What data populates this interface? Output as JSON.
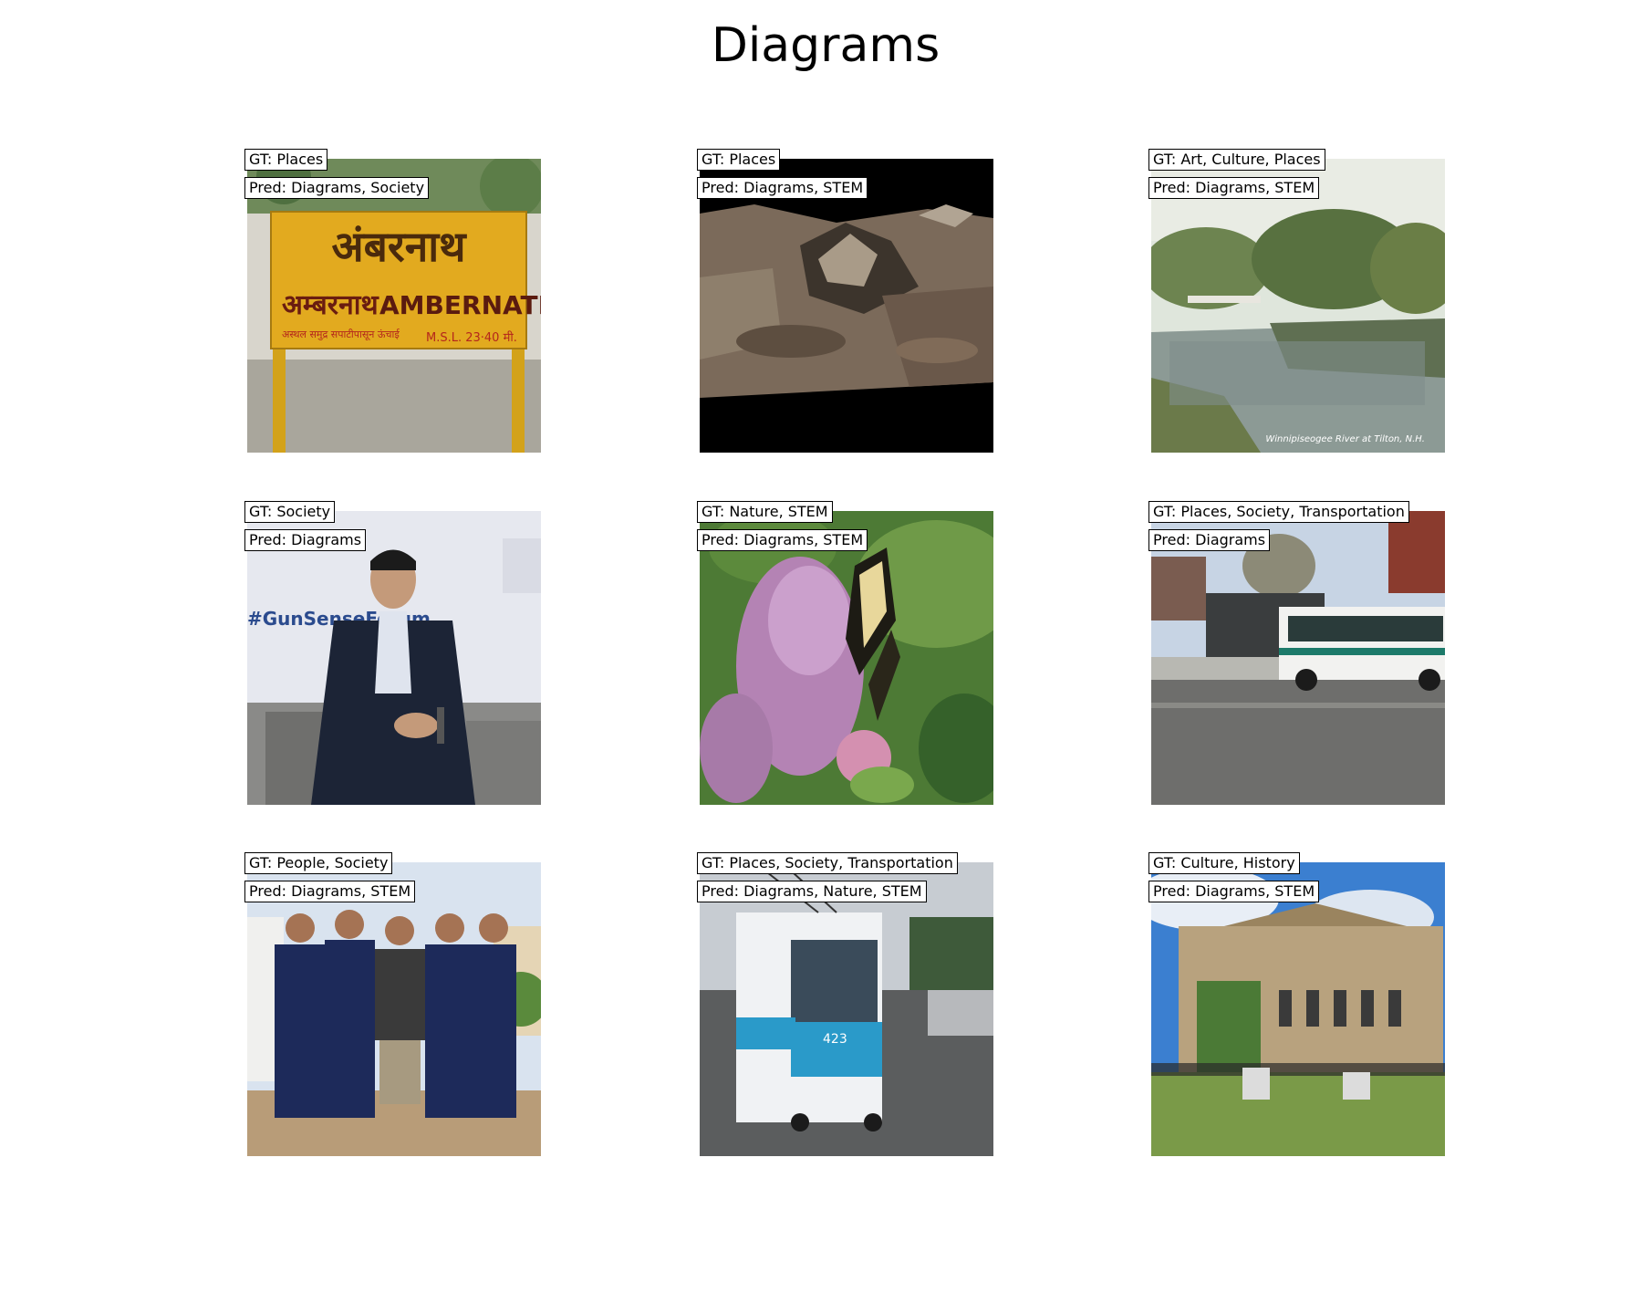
{
  "figure": {
    "title": "Diagrams"
  },
  "panels": [
    {
      "gt": "GT: Places",
      "pred": "Pred: Diagrams, Society",
      "sign_text_top": "अंबरनाथ",
      "sign_text_mid_left": "अम्बरनाथ",
      "sign_text_mid_right": "AMBERNATH",
      "sign_text_bottom_left": "अस्थल समुद्र सपाटीपासून ऊंचाई",
      "sign_text_bottom_right": "M.S.L. 23·40 मी."
    },
    {
      "gt": "GT: Places",
      "pred": "Pred: Diagrams, STEM"
    },
    {
      "gt": "GT: Art, Culture, Places",
      "pred": "Pred: Diagrams, STEM",
      "caption": "Winnipiseogee River at Tilton, N.H."
    },
    {
      "gt": "GT: Society",
      "pred": "Pred: Diagrams",
      "banner_text": "#GunSenseForum"
    },
    {
      "gt": "GT: Nature, STEM",
      "pred": "Pred: Diagrams, STEM"
    },
    {
      "gt": "GT: Places, Society, Transportation",
      "pred": "Pred: Diagrams"
    },
    {
      "gt": "GT: People, Society",
      "pred": "Pred: Diagrams, STEM"
    },
    {
      "gt": "GT: Places, Society, Transportation",
      "pred": "Pred: Diagrams, Nature, STEM",
      "bus_number": "423"
    },
    {
      "gt": "GT: Culture, History",
      "pred": "Pred: Diagrams, STEM"
    }
  ]
}
